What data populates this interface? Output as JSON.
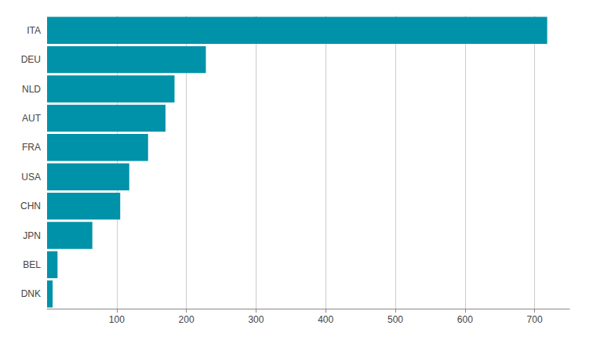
{
  "chart_data": {
    "type": "bar",
    "orientation": "horizontal",
    "categories": [
      "DNK",
      "BEL",
      "JPN",
      "CHN",
      "USA",
      "FRA",
      "AUT",
      "NLD",
      "DEU",
      "ITA"
    ],
    "values": [
      8,
      15,
      65,
      105,
      118,
      145,
      170,
      183,
      228,
      718
    ],
    "color": "#0092a8",
    "xlim": [
      0,
      750
    ],
    "xticks": [
      100,
      200,
      300,
      400,
      500,
      600,
      700
    ],
    "grid": true
  }
}
